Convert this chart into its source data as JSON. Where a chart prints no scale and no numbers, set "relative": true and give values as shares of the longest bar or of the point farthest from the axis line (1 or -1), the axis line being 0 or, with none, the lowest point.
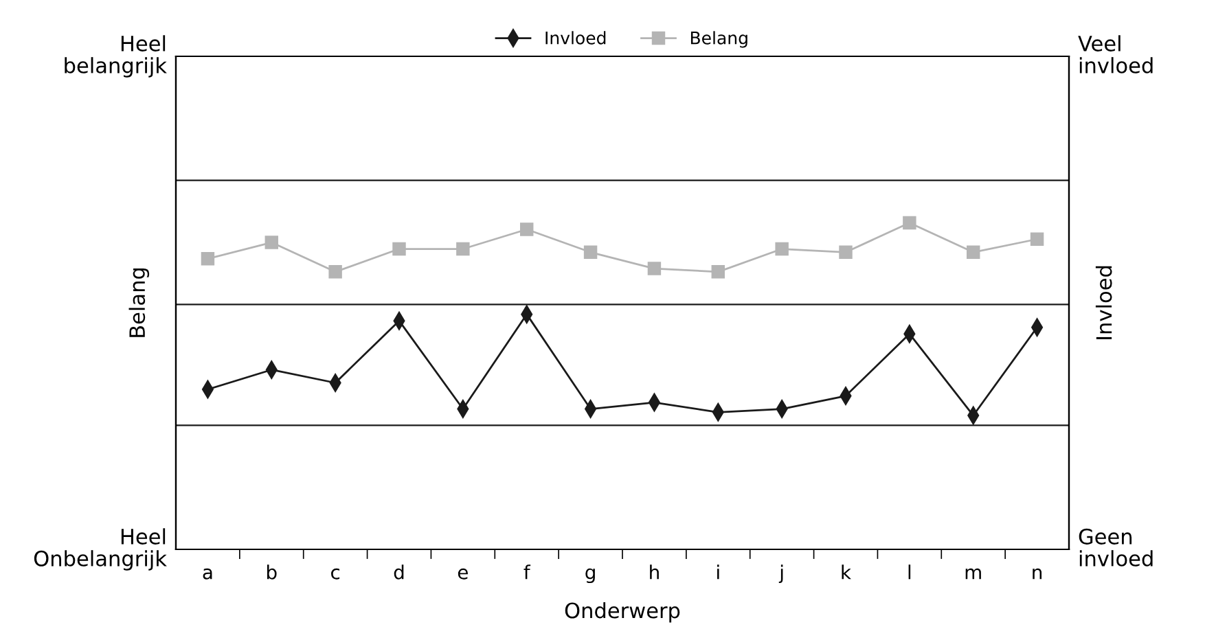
{
  "chart_data": {
    "type": "line",
    "relative": true,
    "xlabel": "Onderwerp",
    "ylabel": "Belang",
    "y2label": "Invloed",
    "categories": [
      "a",
      "b",
      "c",
      "d",
      "e",
      "f",
      "g",
      "h",
      "i",
      "j",
      "k",
      "l",
      "m",
      "n"
    ],
    "series": [
      {
        "name": "Invloed",
        "color": "#1a1a1a",
        "marker": "diamond",
        "values": [
          0.49,
          0.55,
          0.51,
          0.7,
          0.43,
          0.72,
          0.43,
          0.45,
          0.42,
          0.43,
          0.47,
          0.66,
          0.41,
          0.68
        ]
      },
      {
        "name": "Belang",
        "color": "#b4b4b4",
        "marker": "square",
        "values": [
          0.89,
          0.94,
          0.85,
          0.92,
          0.92,
          0.98,
          0.91,
          0.86,
          0.85,
          0.92,
          0.91,
          1,
          0.91,
          0.95
        ]
      }
    ],
    "ref_lines": [
      {
        "axis": "y",
        "value": 0.38,
        "color": "#1a1a1a"
      },
      {
        "axis": "y",
        "value": 0.75,
        "color": "#1a1a1a"
      },
      {
        "axis": "y",
        "value": 1.13,
        "color": "#1a1a1a"
      }
    ],
    "annotations": [
      "Heel\nbelangrijk",
      "Heel\nOnbelangrijk",
      "Veel\ninvloed",
      "Geen\ninvloed"
    ],
    "legend": "top",
    "line_style": "solid"
  }
}
